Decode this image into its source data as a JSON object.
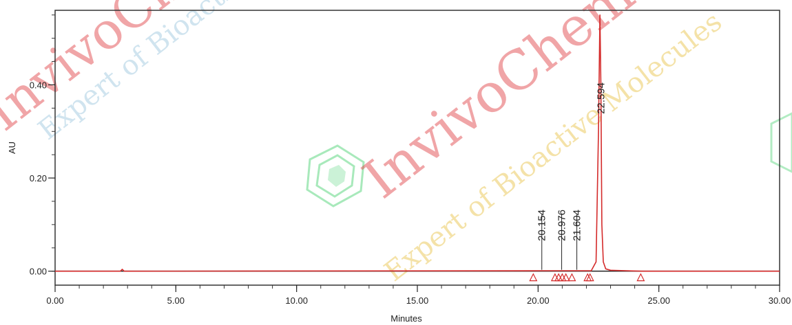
{
  "chart_data": {
    "type": "line",
    "xlabel": "Minutes",
    "ylabel": "AU",
    "xlim": [
      0,
      30
    ],
    "ylim": [
      -0.03,
      0.56
    ],
    "x_ticks": [
      "0.00",
      "5.00",
      "10.00",
      "15.00",
      "20.00",
      "25.00",
      "30.00"
    ],
    "x_tick_values": [
      0,
      5,
      10,
      15,
      20,
      25,
      30
    ],
    "y_ticks": [
      "0.00",
      "0.20",
      "0.40"
    ],
    "y_tick_values": [
      0,
      0.2,
      0.4
    ],
    "grid": false,
    "series": [
      {
        "color": "#d42a2a",
        "x": [
          0,
          2.7,
          2.78,
          2.86,
          20.15,
          20.98,
          21.6,
          22.2,
          22.4,
          22.5,
          22.56,
          22.6,
          22.64,
          22.7,
          22.8,
          23.0,
          24.3,
          30
        ],
        "y": [
          0,
          0,
          0.004,
          0,
          0.001,
          0.001,
          0.001,
          0.001,
          0.02,
          0.3,
          0.55,
          0.4,
          0.1,
          0.02,
          0.005,
          0.002,
          0,
          0
        ]
      }
    ],
    "peaks": [
      {
        "label": "20.154",
        "x": 20.154
      },
      {
        "label": "20.976",
        "x": 20.976
      },
      {
        "label": "21.604",
        "x": 21.604
      },
      {
        "label": "22.594",
        "x": 22.594
      }
    ],
    "integration_markers_x": [
      19.8,
      20.7,
      20.85,
      21.0,
      21.15,
      21.4,
      22.05,
      22.15,
      24.25
    ]
  },
  "watermark": {
    "main": "InvivoChem",
    "secondary": "Expert of Bioactive Molecules"
  }
}
